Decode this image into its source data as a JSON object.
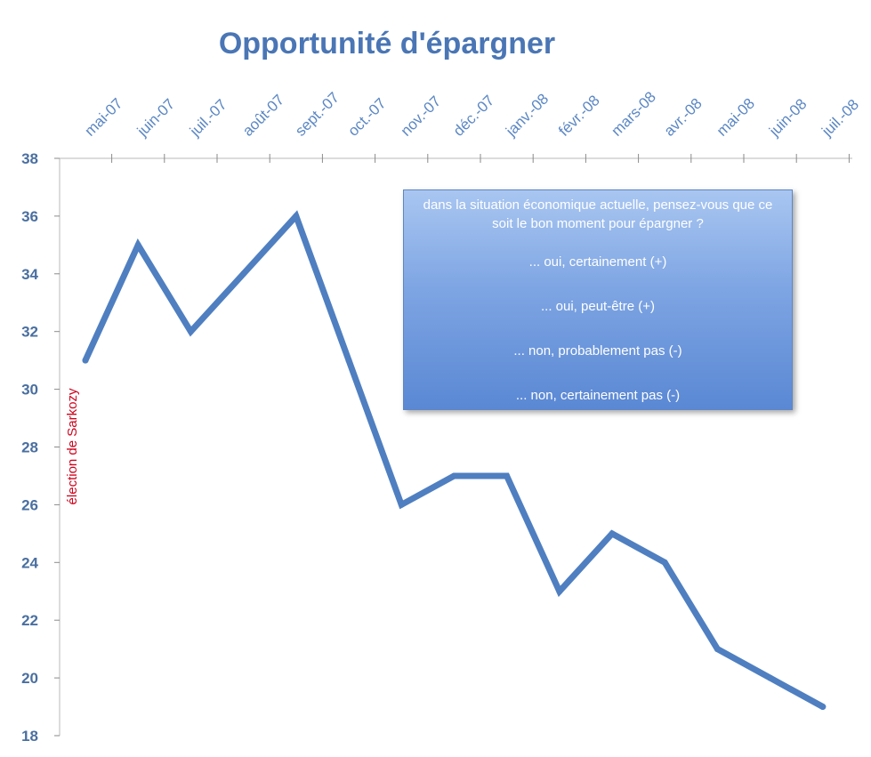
{
  "chart_data": {
    "type": "line",
    "title": "Opportunité d'épargner",
    "categories": [
      "mai-07",
      "juin-07",
      "juil.-07",
      "août-07",
      "sept.-07",
      "oct.-07",
      "nov.-07",
      "déc.-07",
      "janv.-08",
      "févr.-08",
      "mars-08",
      "avr.-08",
      "mai-08",
      "juin-08",
      "juil.-08"
    ],
    "series": [
      {
        "values": [
          31,
          35,
          32,
          34,
          36,
          31,
          26,
          27,
          27,
          23,
          25,
          24,
          21,
          20,
          19
        ],
        "color": "#4f7fc0"
      }
    ],
    "ylim": [
      18,
      38
    ],
    "yticks": [
      18,
      20,
      22,
      24,
      26,
      28,
      30,
      32,
      34,
      36,
      38
    ],
    "x_tick_position": "top",
    "grid": false,
    "annotation": {
      "text": "élection de Sarkozy",
      "category": "mai-07",
      "color": "#d0021b"
    },
    "legend": {
      "placement": "top-right",
      "question": "dans la situation économique actuelle, pensez-vous que ce soit le bon moment pour épargner ?",
      "items": [
        "... oui, certainement (+)",
        "... oui, peut-être (+)",
        "...  non, probablement pas (-)",
        "...  non, certainement pas (-)"
      ]
    }
  }
}
